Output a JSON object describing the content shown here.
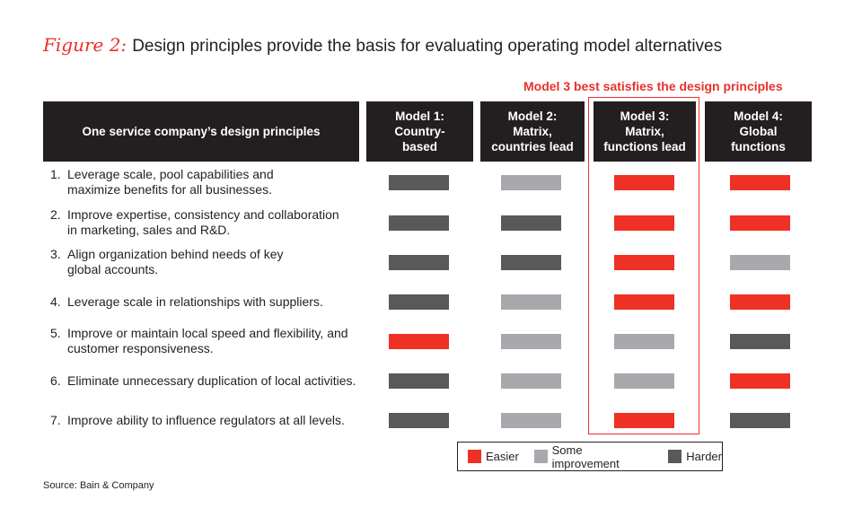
{
  "title": {
    "figure": "Figure 2:",
    "text": "Design principles provide the basis for evaluating operating model alternatives"
  },
  "callout": "Model 3 best satisfies the design principles",
  "columns": {
    "principles": "One service company’s design principles",
    "models": [
      "Model 1:\nCountry-\nbased",
      "Model 2:\nMatrix,\ncountries lead",
      "Model 3:\nMatrix,\nfunctions lead",
      "Model 4:\nGlobal\nfunctions"
    ]
  },
  "colors": {
    "easier": "#ee3124",
    "some": "#a7a9ac",
    "harder": "#58595b",
    "highlight": "#e8312a"
  },
  "rows": [
    {
      "num": "1.",
      "line1": "Leverage scale, pool capabilities and",
      "line2": "maximize benefits for all businesses.",
      "ratings": [
        "harder",
        "some",
        "easier",
        "easier"
      ]
    },
    {
      "num": "2.",
      "line1": "Improve expertise, consistency and collaboration",
      "line2": "in marketing, sales and R&D.",
      "ratings": [
        "harder",
        "harder",
        "easier",
        "easier"
      ]
    },
    {
      "num": "3.",
      "line1": "Align organization behind needs of key",
      "line2": "global accounts.",
      "ratings": [
        "harder",
        "harder",
        "easier",
        "some"
      ]
    },
    {
      "num": "4.",
      "line1": "Leverage scale in relationships with suppliers.",
      "line2": "",
      "ratings": [
        "harder",
        "some",
        "easier",
        "easier"
      ]
    },
    {
      "num": "5.",
      "line1": "Improve or maintain local speed and flexibility, and",
      "line2": "customer responsiveness.",
      "ratings": [
        "easier",
        "some",
        "some",
        "harder"
      ]
    },
    {
      "num": "6.",
      "line1": "Eliminate unnecessary duplication of local activities.",
      "line2": "",
      "ratings": [
        "harder",
        "some",
        "some",
        "easier"
      ]
    },
    {
      "num": "7.",
      "line1": "Improve ability to influence regulators at all levels.",
      "line2": "",
      "ratings": [
        "harder",
        "some",
        "easier",
        "harder"
      ]
    }
  ],
  "legend": {
    "easier": "Easier",
    "some": "Some improvement",
    "harder": "Harder"
  },
  "source": "Source: Bain & Company"
}
